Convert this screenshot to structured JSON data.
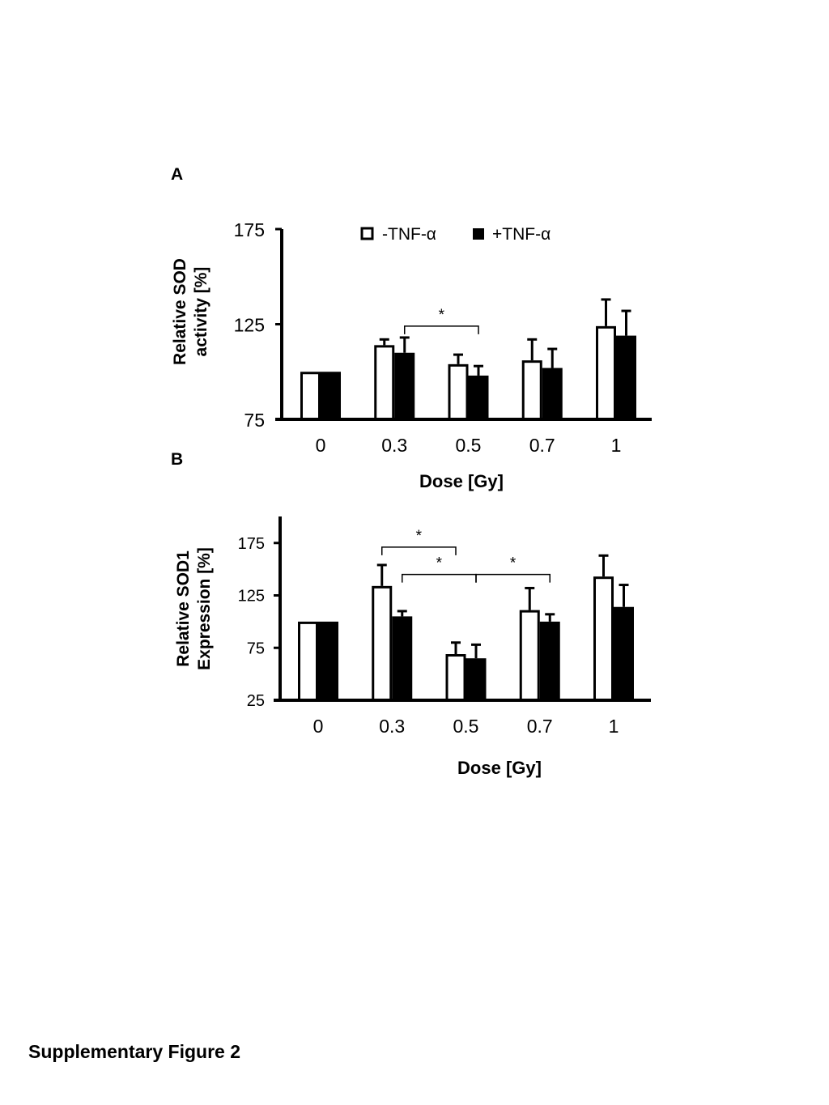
{
  "figure_caption": "Supplementary Figure 2",
  "legend": {
    "series_a": "-TNF-α",
    "series_b": "+TNF-α"
  },
  "colors": {
    "series_a_fill": "#ffffff",
    "series_b_fill": "#000000",
    "stroke": "#000000"
  },
  "chart_data": [
    {
      "panel": "A",
      "type": "bar",
      "categories": [
        "0",
        "0.3",
        "0.5",
        "0.7",
        "1"
      ],
      "xlabel": "Dose [Gy]",
      "ylabel_lines": [
        "Relative SOD",
        "activity [%]"
      ],
      "ylim": [
        75,
        175
      ],
      "yticks": [
        "75",
        "125",
        "175"
      ],
      "series": [
        {
          "name": "-TNF-α",
          "values": [
            100,
            114,
            104,
            106,
            124
          ],
          "errors": [
            0,
            3,
            5,
            11,
            14
          ]
        },
        {
          "name": "+TNF-α",
          "values": [
            100,
            110,
            98,
            102,
            119
          ],
          "errors": [
            0,
            8,
            5,
            10,
            13
          ]
        }
      ],
      "significance": [
        {
          "from_category": "0.3",
          "from_series": "+TNF-α",
          "to_category": "0.5",
          "to_series": "+TNF-α",
          "level": 124,
          "label": "*"
        }
      ]
    },
    {
      "panel": "B",
      "type": "bar",
      "categories": [
        "0",
        "0.3",
        "0.5",
        "0.7",
        "1"
      ],
      "xlabel": "Dose [Gy]",
      "ylabel_lines": [
        "Relative SOD1",
        "Expression [%]"
      ],
      "ylim": [
        25,
        200
      ],
      "yticks": [
        "25",
        "75",
        "125",
        "175"
      ],
      "series": [
        {
          "name": "-TNF-α",
          "values": [
            100,
            134,
            69,
            111,
            143
          ],
          "errors": [
            0,
            20,
            11,
            21,
            20
          ]
        },
        {
          "name": "+TNF-α",
          "values": [
            100,
            105,
            65,
            100,
            114
          ],
          "errors": [
            0,
            5,
            13,
            7,
            21
          ]
        }
      ],
      "significance": [
        {
          "from_category": "0.3",
          "from_series": "-TNF-α",
          "to_category": "0.5",
          "to_series": "-TNF-α",
          "level": 171,
          "label": "*"
        },
        {
          "from_category": "0.3",
          "from_series": "+TNF-α",
          "to_category": "0.5",
          "to_series": "+TNF-α",
          "level": 145,
          "label": "*"
        },
        {
          "from_category": "0.5",
          "from_series": "+TNF-α",
          "to_category": "0.7",
          "to_series": "+TNF-α",
          "level": 145,
          "label": "*"
        }
      ]
    }
  ]
}
